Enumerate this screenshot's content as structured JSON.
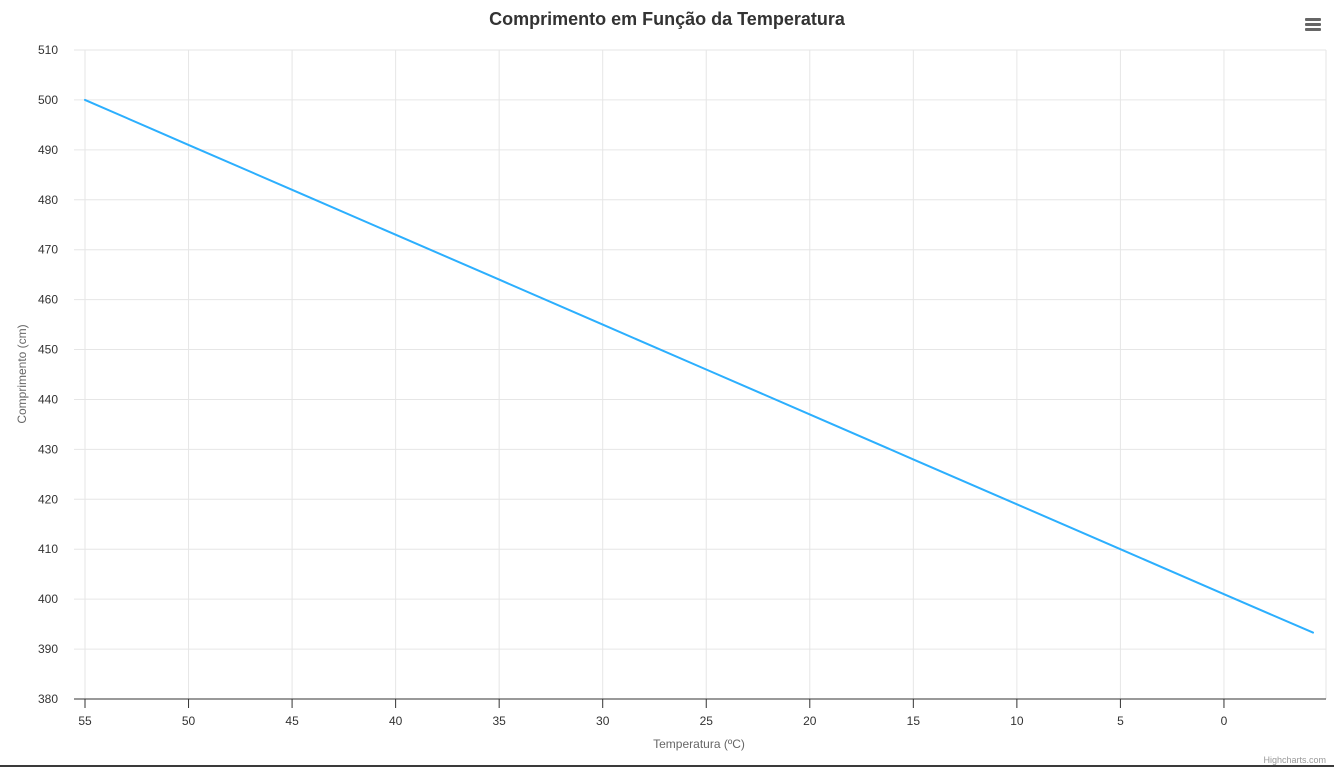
{
  "chart_data": {
    "type": "line",
    "title": "Comprimento em Função da Temperatura",
    "xlabel": "Temperatura (ºC)",
    "ylabel": "Comprimento (cm)",
    "x_reversed": true,
    "xlim": [
      55,
      -4.3
    ],
    "ylim": [
      380,
      510
    ],
    "x_ticks": [
      55,
      50,
      45,
      40,
      35,
      30,
      25,
      20,
      15,
      10,
      5,
      0
    ],
    "y_ticks": [
      380,
      390,
      400,
      410,
      420,
      430,
      440,
      450,
      460,
      470,
      480,
      490,
      500,
      510
    ],
    "grid": true,
    "legend": false,
    "series": [
      {
        "color": "#2caffe",
        "x": [
          55,
          50,
          45,
          40,
          35,
          30,
          25,
          20,
          15,
          10,
          5,
          0,
          -4.3
        ],
        "y": [
          500,
          491,
          482,
          473,
          464,
          455,
          446,
          437,
          428,
          419,
          410,
          401,
          393.3
        ]
      }
    ],
    "credits": "Highcharts.com"
  },
  "colors": {
    "series": "#2caffe",
    "grid": "#e6e6e6",
    "axis_line": "#333333",
    "tick_label": "#333333",
    "axis_title": "#666666",
    "title": "#333333",
    "credits": "#999999"
  },
  "icons": {
    "menu": "hamburger-menu-icon"
  }
}
